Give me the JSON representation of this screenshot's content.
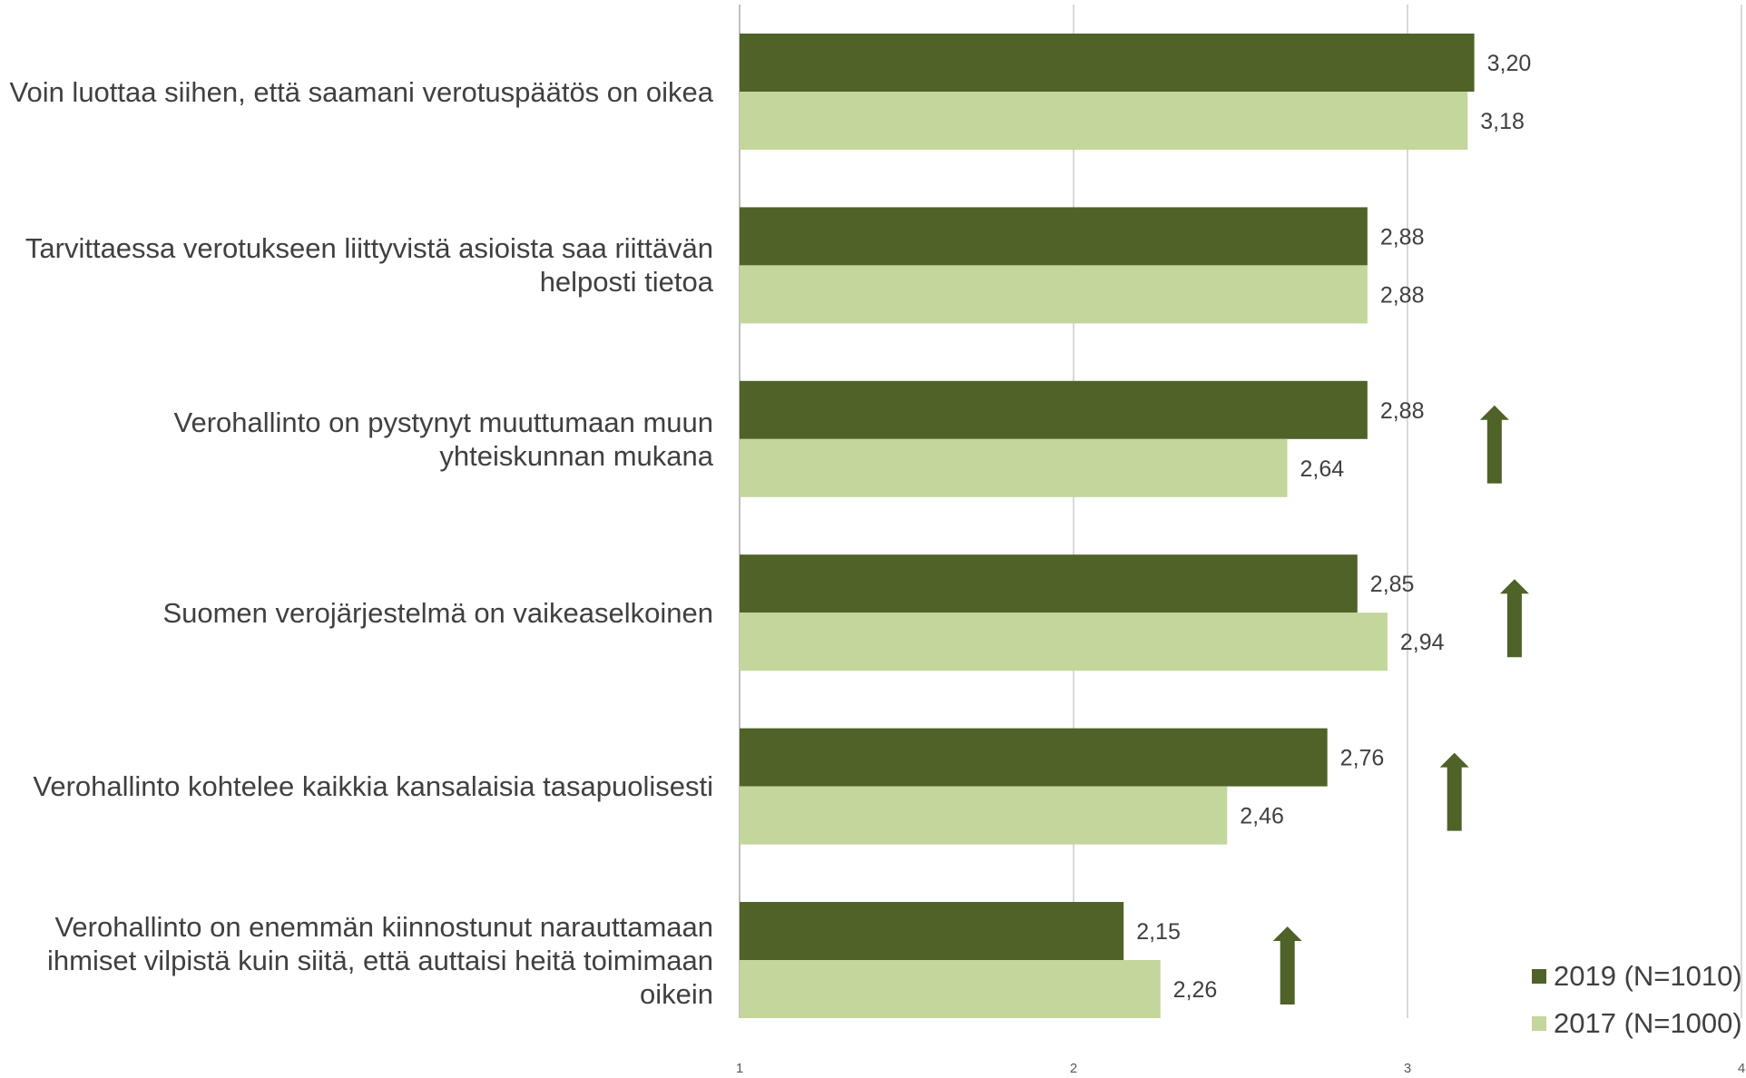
{
  "chart_data": {
    "type": "bar",
    "orientation": "horizontal",
    "categories": [
      "Voin luottaa siihen, että saamani verotuspäätös on oikea",
      "Tarvittaessa verotukseen liittyvistä asioista saa riittävän helposti tietoa",
      "Verohallinto on pystynyt muuttumaan muun yhteiskunnan mukana",
      "Suomen verojärjestelmä on vaikeaselkoinen",
      "Verohallinto kohtelee kaikkia kansalaisia tasapuolisesti",
      "Verohallinto on enemmän kiinnostunut narauttamaan ihmiset vilpistä kuin siitä, että auttaisi heitä toimimaan oikein"
    ],
    "series": [
      {
        "name": "2019 (N=1010)",
        "color": "#4f6228",
        "values": [
          3.2,
          2.88,
          2.88,
          2.85,
          2.76,
          2.15
        ],
        "labels": [
          "3,20",
          "2,88",
          "2,88",
          "2,85",
          "2,76",
          "2,15"
        ]
      },
      {
        "name": "2017 (N=1000)",
        "color": "#c3d69b",
        "values": [
          3.18,
          2.88,
          2.64,
          2.94,
          2.46,
          2.26
        ],
        "labels": [
          "3,18",
          "2,88",
          "2,64",
          "2,94",
          "2,46",
          "2,26"
        ]
      }
    ],
    "change_arrows": [
      false,
      false,
      true,
      true,
      true,
      true
    ],
    "arrow_color": "#4f6228",
    "xlim": [
      1,
      4
    ],
    "xticks": [
      "1",
      "2",
      "3",
      "4"
    ],
    "grid": true,
    "legend_position": "bottom-right",
    "title": "",
    "xlabel": "",
    "ylabel": ""
  }
}
